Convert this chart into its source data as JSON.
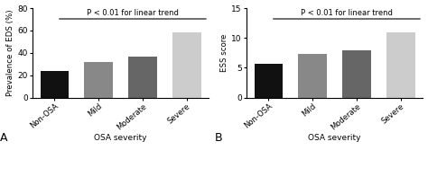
{
  "categories": [
    "Non-OSA",
    "Mild",
    "Moderate",
    "Severe"
  ],
  "values_A": [
    24,
    32,
    37,
    58
  ],
  "values_B": [
    5.7,
    7.4,
    8.0,
    11.0
  ],
  "bar_colors": [
    "#111111",
    "#888888",
    "#666666",
    "#cccccc"
  ],
  "ylabel_A": "Prevalence of EDS (%)",
  "ylabel_B": "ESS score",
  "xlabel": "OSA severity",
  "ylim_A": [
    0,
    80
  ],
  "ylim_B": [
    0,
    15
  ],
  "yticks_A": [
    0,
    20,
    40,
    60,
    80
  ],
  "yticks_B": [
    0,
    5,
    10,
    15
  ],
  "pvalue_text": "P < 0.01 for linear trend",
  "label_A": "A",
  "label_B": "B",
  "background_color": "#ffffff"
}
